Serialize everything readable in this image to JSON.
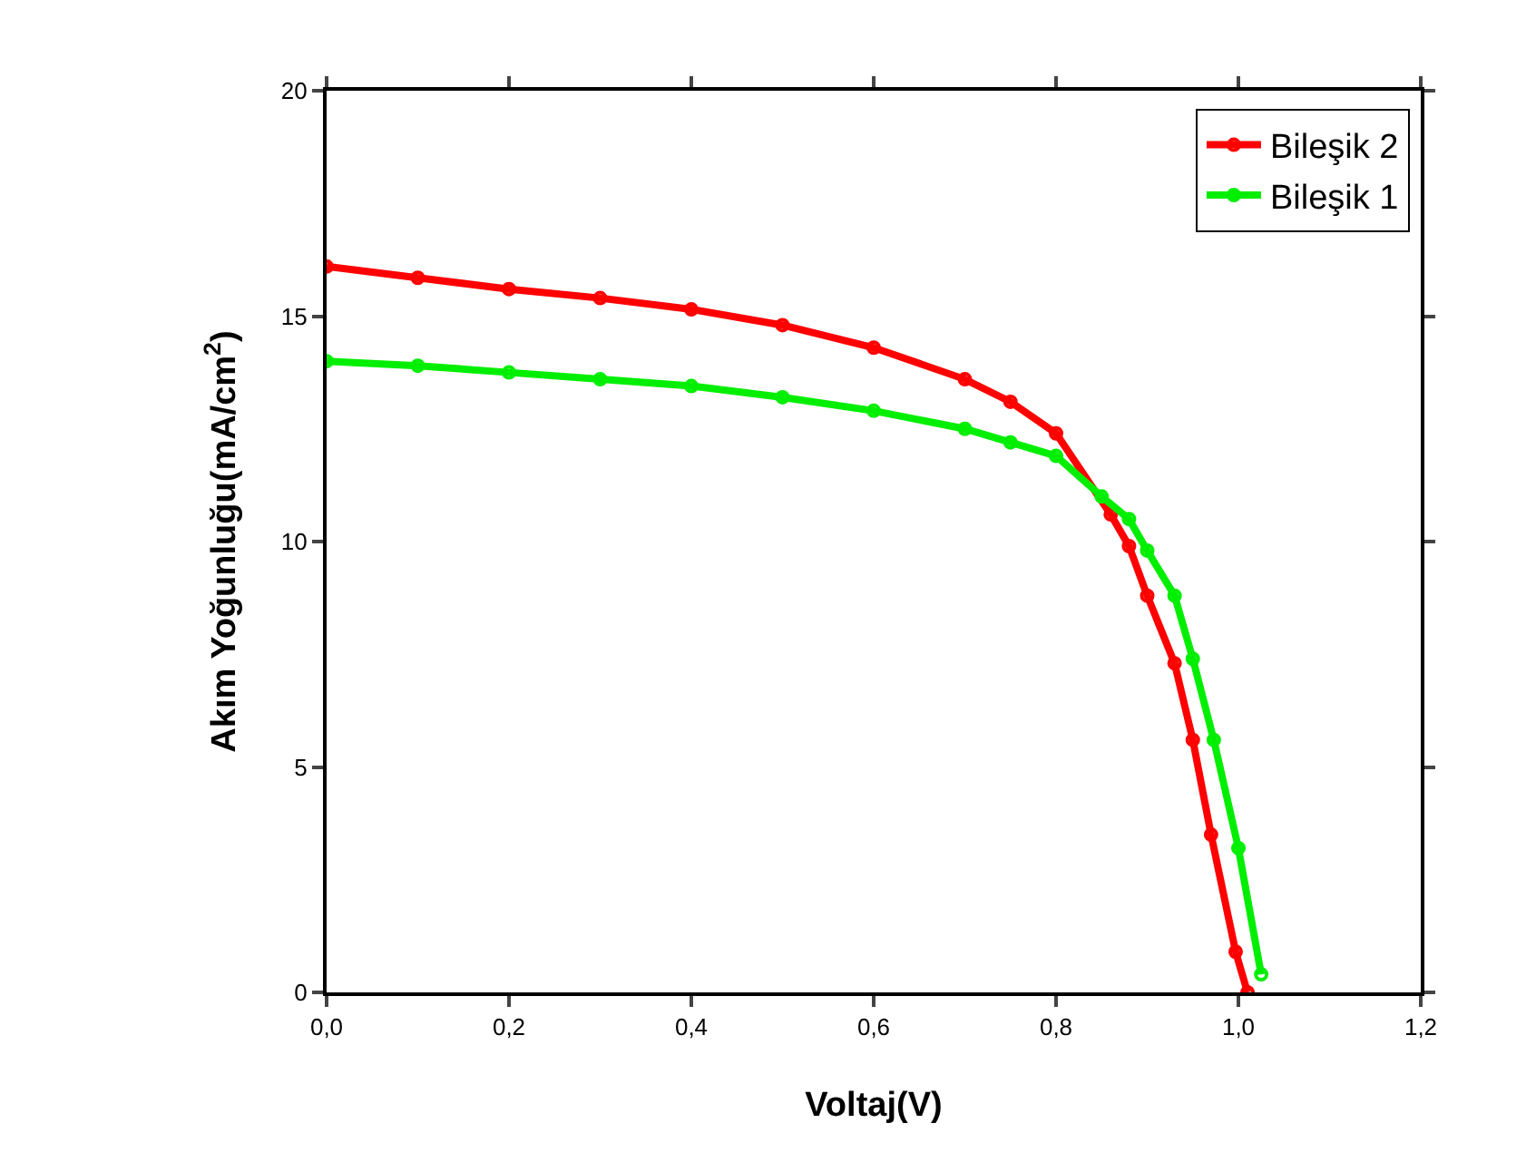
{
  "chart_data": {
    "type": "line",
    "xlabel": "Voltaj(V)",
    "ylabel": "Akım Yoğunluğu(mA/cm$^{2}$)",
    "xlim": [
      0,
      1.2
    ],
    "ylim": [
      0,
      20
    ],
    "xticks": [
      {
        "value": 0,
        "label": "0,0"
      },
      {
        "value": 0.2,
        "label": "0,2"
      },
      {
        "value": 0.4,
        "label": "0,4"
      },
      {
        "value": 0.6,
        "label": "0,6"
      },
      {
        "value": 0.8,
        "label": "0,8"
      },
      {
        "value": 1,
        "label": "1,0"
      },
      {
        "value": 1.2,
        "label": "1,2"
      }
    ],
    "yticks": [
      0,
      5,
      10,
      15,
      20
    ],
    "grid": false,
    "legend": "top right",
    "marker": "circle",
    "line_style": "solid",
    "series": [
      {
        "name": "Bileşik 2",
        "color": "#ff0000",
        "x": [
          0,
          0.1,
          0.2,
          0.3,
          0.4,
          0.5,
          0.6,
          0.7,
          0.75,
          0.8,
          0.86,
          0.88,
          0.9,
          0.93,
          0.95,
          0.97,
          0.997,
          1.01
        ],
        "values": [
          16.1,
          15.85,
          15.6,
          15.4,
          15.15,
          14.8,
          14.3,
          13.6,
          13.1,
          12.4,
          10.6,
          9.9,
          8.8,
          7.3,
          5.6,
          3.5,
          0.9,
          0
        ]
      },
      {
        "name": "Bileşik 1",
        "color": "#00ee00",
        "x": [
          0,
          0.1,
          0.2,
          0.3,
          0.4,
          0.5,
          0.6,
          0.7,
          0.75,
          0.8,
          0.85,
          0.88,
          0.9,
          0.93,
          0.95,
          0.973,
          1,
          1.025
        ],
        "values": [
          14,
          13.9,
          13.75,
          13.6,
          13.45,
          13.2,
          12.9,
          12.5,
          12.2,
          11.9,
          11,
          10.5,
          9.8,
          8.8,
          7.4,
          5.6,
          3.2,
          0.4
        ]
      }
    ]
  }
}
